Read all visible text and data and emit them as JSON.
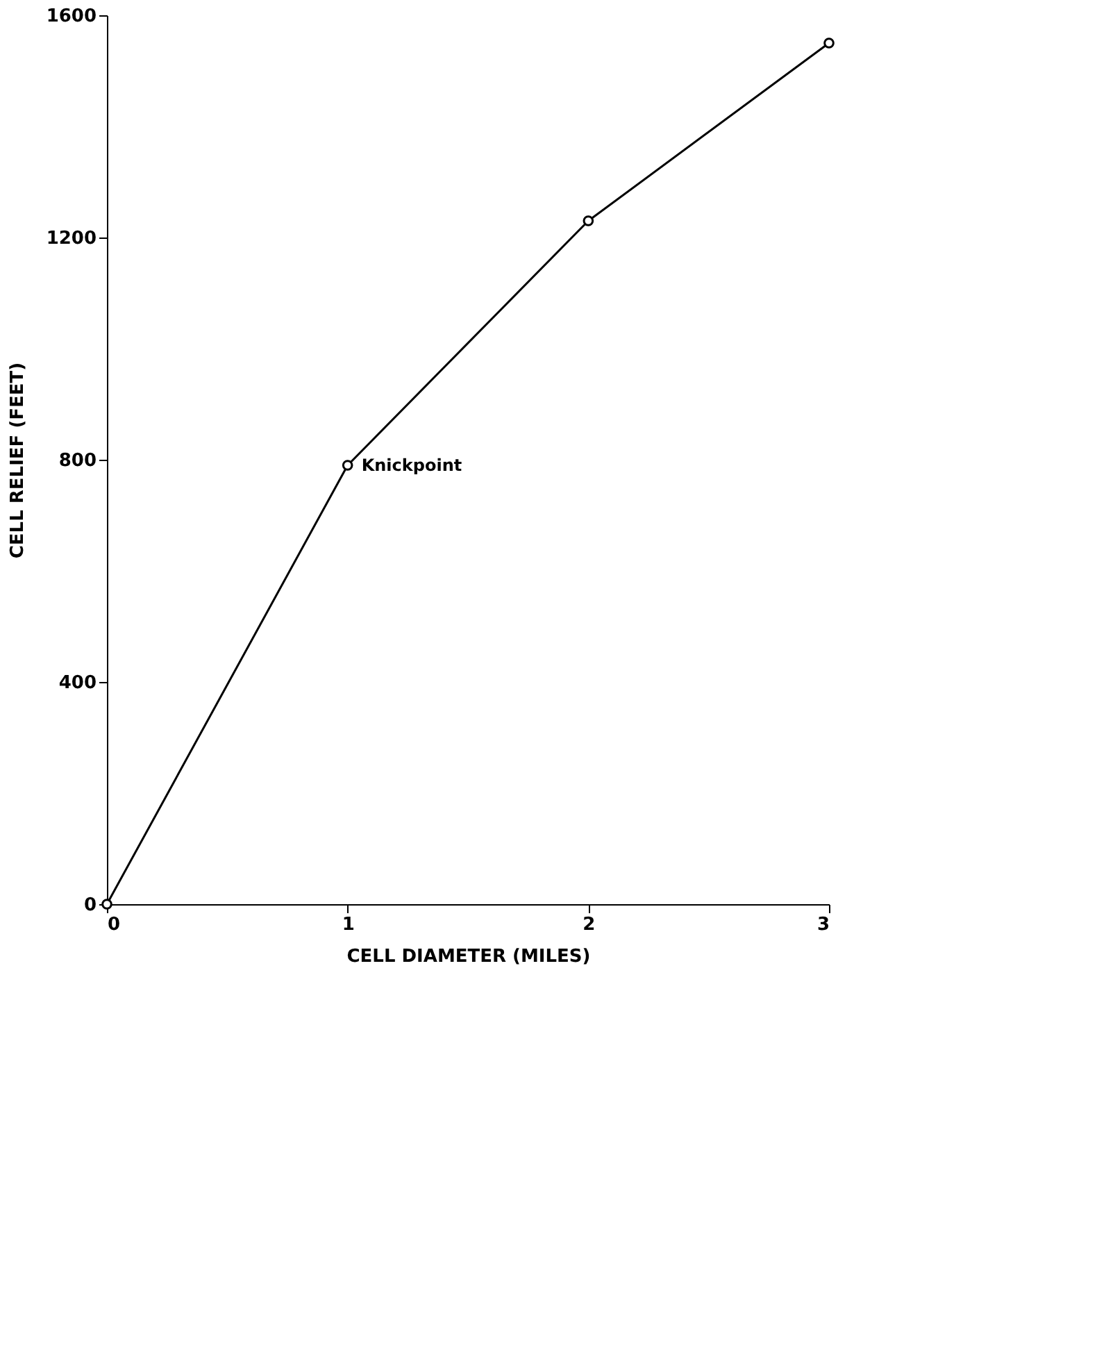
{
  "chart_data": {
    "type": "line",
    "xlabel": "CELL DIAMETER (MILES)",
    "ylabel": "CELL RELIEF (FEET)",
    "x": [
      0,
      1,
      2,
      3
    ],
    "series": [
      {
        "color": "#000000",
        "values": [
          0,
          790,
          1230,
          1550
        ]
      }
    ],
    "xlim": [
      0,
      3
    ],
    "xticks": [
      0,
      1,
      2,
      3
    ],
    "ylim": [
      0,
      1600
    ],
    "yticks": [
      0,
      400,
      800,
      1200,
      1600
    ],
    "annotations": [
      {
        "text": "Knickpoint",
        "x": 1,
        "y": 790
      }
    ],
    "marker": "circle",
    "line_style": "solid",
    "grid": false
  }
}
